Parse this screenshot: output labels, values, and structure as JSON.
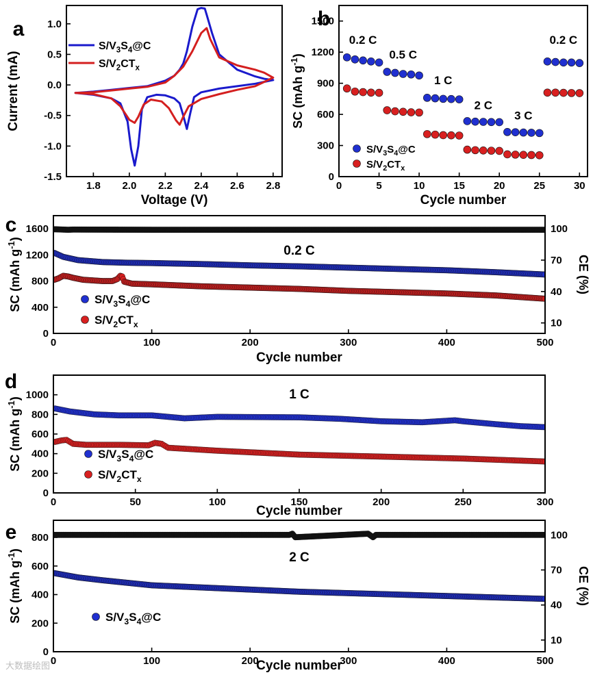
{
  "watermark": "大数据绘图",
  "chart_data": [
    {
      "panel": "a",
      "type": "line",
      "xlabel": "Voltage (V)",
      "ylabel": "Current (mA)",
      "xlim": [
        1.65,
        2.85
      ],
      "ylim": [
        -1.5,
        1.3
      ],
      "xticks": [
        1.8,
        2.0,
        2.2,
        2.4,
        2.6,
        2.8
      ],
      "xtick_labels": [
        "1.8",
        "2.0",
        "2.2",
        "2.4",
        "2.6",
        "2.8"
      ],
      "yticks": [
        -1.5,
        -1.0,
        -0.5,
        0.0,
        0.5,
        1.0
      ],
      "ytick_labels": [
        "-1.5",
        "-1.0",
        "-0.5",
        "0.0",
        "0.5",
        "1.0"
      ],
      "legend": "top-left",
      "series": [
        {
          "name": "S/V3S4@C",
          "color": "#1a1acc",
          "x": [
            1.7,
            1.8,
            1.9,
            1.95,
            1.99,
            2.01,
            2.03,
            2.05,
            2.07,
            2.1,
            2.15,
            2.2,
            2.25,
            2.28,
            2.3,
            2.32,
            2.34,
            2.36,
            2.4,
            2.5,
            2.6,
            2.7,
            2.8,
            2.8,
            2.75,
            2.7,
            2.6,
            2.5,
            2.46,
            2.43,
            2.42,
            2.4,
            2.38,
            2.35,
            2.32,
            2.3,
            2.28,
            2.25,
            2.2,
            2.1,
            2.0,
            1.9,
            1.8,
            1.7
          ],
          "y": [
            -0.13,
            -0.16,
            -0.22,
            -0.3,
            -0.6,
            -1.05,
            -1.32,
            -1.0,
            -0.4,
            -0.2,
            -0.16,
            -0.17,
            -0.22,
            -0.3,
            -0.5,
            -0.72,
            -0.45,
            -0.2,
            -0.12,
            -0.06,
            -0.02,
            0.02,
            0.08,
            0.08,
            0.1,
            0.14,
            0.25,
            0.5,
            0.85,
            1.15,
            1.25,
            1.26,
            1.24,
            0.95,
            0.55,
            0.35,
            0.25,
            0.15,
            0.07,
            -0.02,
            -0.05,
            -0.08,
            -0.11,
            -0.13
          ]
        },
        {
          "name": "S/V2CTx",
          "color": "#d41f1f",
          "x": [
            1.7,
            1.8,
            1.9,
            1.95,
            2.0,
            2.03,
            2.05,
            2.08,
            2.12,
            2.18,
            2.22,
            2.26,
            2.28,
            2.3,
            2.33,
            2.4,
            2.5,
            2.6,
            2.7,
            2.8,
            2.8,
            2.75,
            2.7,
            2.6,
            2.5,
            2.45,
            2.43,
            2.4,
            2.35,
            2.3,
            2.25,
            2.2,
            2.1,
            2.0,
            1.9,
            1.8,
            1.7
          ],
          "y": [
            -0.13,
            -0.15,
            -0.22,
            -0.35,
            -0.57,
            -0.62,
            -0.52,
            -0.32,
            -0.24,
            -0.27,
            -0.38,
            -0.58,
            -0.65,
            -0.52,
            -0.35,
            -0.23,
            -0.15,
            -0.08,
            -0.02,
            0.12,
            0.12,
            0.2,
            0.25,
            0.32,
            0.45,
            0.75,
            0.93,
            0.85,
            0.55,
            0.3,
            0.15,
            0.04,
            -0.03,
            -0.06,
            -0.09,
            -0.12,
            -0.13
          ]
        }
      ]
    },
    {
      "panel": "b",
      "type": "scatter",
      "xlabel": "Cycle number",
      "ylabel": "SC (mAh g-1)",
      "xlim": [
        0,
        31
      ],
      "ylim": [
        0,
        1650
      ],
      "xticks": [
        0,
        5,
        10,
        15,
        20,
        25,
        30
      ],
      "xtick_labels": [
        "0",
        "5",
        "10",
        "15",
        "20",
        "25",
        "30"
      ],
      "yticks": [
        0,
        300,
        600,
        900,
        1200,
        1500
      ],
      "ytick_labels": [
        "0",
        "300",
        "600",
        "900",
        "1200",
        "1500"
      ],
      "legend": "bottom-left",
      "rate_labels": [
        {
          "text": "0.2 C",
          "x": 3,
          "y": 1280
        },
        {
          "text": "0.5 C",
          "x": 8,
          "y": 1140
        },
        {
          "text": "1 C",
          "x": 13,
          "y": 890
        },
        {
          "text": "2 C",
          "x": 18,
          "y": 650
        },
        {
          "text": "3 C",
          "x": 23,
          "y": 550
        },
        {
          "text": "0.2 C",
          "x": 28,
          "y": 1280
        }
      ],
      "series": [
        {
          "name": "S/V3S4@C",
          "color": "#2030d0",
          "x": [
            1,
            2,
            3,
            4,
            5,
            6,
            7,
            8,
            9,
            10,
            11,
            12,
            13,
            14,
            15,
            16,
            17,
            18,
            19,
            20,
            21,
            22,
            23,
            24,
            25,
            26,
            27,
            28,
            29,
            30
          ],
          "y": [
            1150,
            1130,
            1120,
            1110,
            1100,
            1010,
            1000,
            990,
            985,
            975,
            760,
            755,
            750,
            748,
            745,
            535,
            530,
            528,
            526,
            525,
            430,
            428,
            425,
            423,
            420,
            1110,
            1105,
            1100,
            1100,
            1095
          ]
        },
        {
          "name": "S/V2CTx",
          "color": "#d82020",
          "x": [
            1,
            2,
            3,
            4,
            5,
            6,
            7,
            8,
            9,
            10,
            11,
            12,
            13,
            14,
            15,
            16,
            17,
            18,
            19,
            20,
            21,
            22,
            23,
            24,
            25,
            26,
            27,
            28,
            29,
            30
          ],
          "y": [
            850,
            820,
            815,
            810,
            808,
            640,
            630,
            625,
            620,
            618,
            410,
            405,
            400,
            398,
            396,
            260,
            255,
            252,
            250,
            248,
            215,
            212,
            210,
            208,
            206,
            810,
            810,
            808,
            806,
            805
          ]
        }
      ]
    },
    {
      "panel": "c",
      "type": "scatter",
      "annotation": "0.2 C",
      "xlabel": "Cycle number",
      "ylabel": "SC (mAh g-1)",
      "y2label": "CE (%)",
      "xlim": [
        0,
        500
      ],
      "ylim": [
        0,
        1800
      ],
      "y2lim": [
        0,
        112.5
      ],
      "xticks": [
        0,
        100,
        200,
        300,
        400,
        500
      ],
      "xtick_labels": [
        "0",
        "100",
        "200",
        "300",
        "400",
        "500"
      ],
      "yticks": [
        0,
        400,
        800,
        1200,
        1600
      ],
      "ytick_labels": [
        "0",
        "400",
        "800",
        "1200",
        "1600"
      ],
      "y2ticks": [
        10,
        40,
        70,
        100
      ],
      "y2tick_labels": [
        "10",
        "40",
        "70",
        "100"
      ],
      "legend": "bottom-left",
      "series": [
        {
          "name": "S/V3S4@C",
          "color": "#2030d0",
          "x": [
            1,
            10,
            25,
            50,
            75,
            100,
            150,
            200,
            250,
            300,
            350,
            400,
            450,
            500
          ],
          "y": [
            1230,
            1170,
            1120,
            1090,
            1080,
            1075,
            1060,
            1040,
            1025,
            1005,
            985,
            965,
            935,
            900
          ]
        },
        {
          "name": "S/V2CTx",
          "color": "#d82020",
          "x": [
            1,
            5,
            10,
            15,
            20,
            30,
            40,
            50,
            60,
            65,
            68,
            70,
            72,
            80,
            100,
            150,
            200,
            250,
            300,
            350,
            400,
            450,
            500
          ],
          "y": [
            820,
            840,
            880,
            870,
            850,
            820,
            810,
            800,
            800,
            830,
            880,
            870,
            790,
            760,
            750,
            720,
            700,
            680,
            650,
            630,
            610,
            580,
            530
          ]
        },
        {
          "name": "CE",
          "color": "#111111",
          "axis": "right",
          "x": [
            1,
            15,
            20,
            100,
            200,
            300,
            400,
            500
          ],
          "y": [
            99.5,
            99.0,
            99.2,
            99.0,
            99.0,
            99.0,
            99.0,
            99.0
          ]
        }
      ]
    },
    {
      "panel": "d",
      "type": "scatter",
      "annotation": "1 C",
      "xlabel": "Cycle number",
      "ylabel": "SC (mAh g-1)",
      "xlim": [
        0,
        300
      ],
      "ylim": [
        0,
        1200
      ],
      "xticks": [
        0,
        50,
        100,
        150,
        200,
        250,
        300
      ],
      "xtick_labels": [
        "0",
        "50",
        "100",
        "150",
        "200",
        "250",
        "300"
      ],
      "yticks": [
        0,
        200,
        400,
        600,
        800,
        1000
      ],
      "ytick_labels": [
        "0",
        "200",
        "400",
        "600",
        "800",
        "1000"
      ],
      "legend": "bottom-left",
      "series": [
        {
          "name": "S/V3S4@C",
          "color": "#2030d0",
          "x": [
            1,
            10,
            25,
            40,
            60,
            80,
            100,
            150,
            175,
            200,
            225,
            245,
            250,
            270,
            285,
            300
          ],
          "y": [
            860,
            830,
            800,
            790,
            790,
            760,
            775,
            770,
            755,
            730,
            720,
            740,
            730,
            700,
            680,
            670
          ]
        },
        {
          "name": "S/V2CTx",
          "color": "#d82020",
          "x": [
            1,
            5,
            8,
            12,
            20,
            40,
            58,
            62,
            66,
            70,
            100,
            150,
            200,
            250,
            300
          ],
          "y": [
            520,
            535,
            540,
            500,
            490,
            490,
            485,
            510,
            500,
            460,
            430,
            390,
            370,
            350,
            320
          ]
        }
      ]
    },
    {
      "panel": "e",
      "type": "scatter",
      "annotation": "2 C",
      "xlabel": "Cycle number",
      "ylabel": "SC (mAh g-1)",
      "y2label": "CE (%)",
      "xlim": [
        0,
        500
      ],
      "ylim": [
        0,
        920
      ],
      "y2lim": [
        0,
        112.5
      ],
      "xticks": [
        0,
        100,
        200,
        300,
        400,
        500
      ],
      "xtick_labels": [
        "0",
        "100",
        "200",
        "300",
        "400",
        "500"
      ],
      "yticks": [
        0,
        200,
        400,
        600,
        800
      ],
      "ytick_labels": [
        "0",
        "200",
        "400",
        "600",
        "800"
      ],
      "y2ticks": [
        10,
        40,
        70,
        100
      ],
      "y2tick_labels": [
        "10",
        "40",
        "70",
        "100"
      ],
      "legend": "bottom-left",
      "series": [
        {
          "name": "S/V3S4@C",
          "color": "#2030d0",
          "x": [
            1,
            25,
            50,
            100,
            150,
            200,
            250,
            300,
            350,
            400,
            450,
            500
          ],
          "y": [
            550,
            520,
            500,
            465,
            450,
            435,
            420,
            410,
            400,
            390,
            380,
            370
          ]
        },
        {
          "name": "CE",
          "color": "#111111",
          "axis": "right",
          "x": [
            1,
            240,
            243,
            246,
            320,
            325,
            328,
            500
          ],
          "y": [
            100,
            100,
            101,
            98,
            101,
            98,
            100,
            100
          ]
        }
      ]
    }
  ]
}
